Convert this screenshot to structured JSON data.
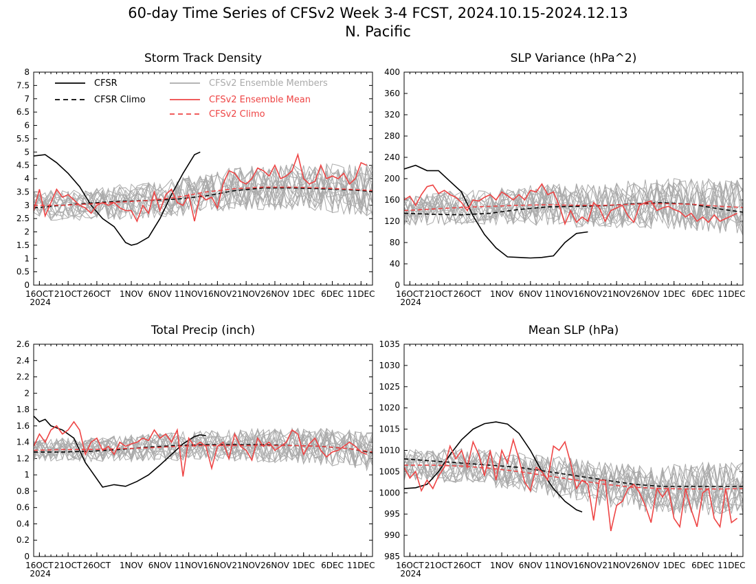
{
  "figure": {
    "title_line1": "60-day Time Series of CFSv2 Week 3-4 FCST, 2024.10.15-2024.12.13",
    "title_line2": "N. Pacific"
  },
  "colors": {
    "cfsr": "#000000",
    "ensemble_members": "#aaaaaa",
    "ensemble_mean": "#ee4444",
    "cfsv2_climo": "#ee4444"
  },
  "legend": [
    {
      "label": "CFSR",
      "color": "#000000",
      "dash": false
    },
    {
      "label": "CFSR Climo",
      "color": "#000000",
      "dash": true
    },
    {
      "label": "CFSv2 Ensemble Members",
      "color": "#aaaaaa",
      "dash": false
    },
    {
      "label": "CFSv2 Ensemble Mean",
      "color": "#ee4444",
      "dash": false
    },
    {
      "label": "CFSv2 Climo",
      "color": "#ee4444",
      "dash": true
    }
  ],
  "x_axis": {
    "tick_labels": [
      "16OCT",
      "21OCT",
      "26OCT",
      "1NOV",
      "6NOV",
      "11NOV",
      "16NOV",
      "21NOV",
      "26NOV",
      "1DEC",
      "6DEC",
      "11DEC"
    ],
    "tick_days": [
      1,
      6,
      11,
      17,
      22,
      27,
      32,
      37,
      42,
      47,
      52,
      57
    ],
    "year_label": "2024",
    "xlim": [
      0,
      59
    ]
  },
  "chart_data": [
    {
      "type": "line",
      "title": "Storm Track Density",
      "ylim": [
        0,
        8
      ],
      "yticks": [
        "0",
        "0.5",
        "1",
        "1.5",
        "2",
        "2.5",
        "3",
        "3.5",
        "4",
        "4.5",
        "5",
        "5.5",
        "6",
        "6.5",
        "7",
        "7.5",
        "8"
      ],
      "series": [
        {
          "name": "CFSR",
          "x": [
            0,
            2,
            4,
            6,
            8,
            10,
            12,
            14,
            16,
            17,
            18,
            20,
            22,
            24,
            26,
            28,
            29
          ],
          "values": [
            4.85,
            4.9,
            4.6,
            4.2,
            3.7,
            3.0,
            2.5,
            2.2,
            1.6,
            1.5,
            1.55,
            1.8,
            2.5,
            3.4,
            4.2,
            4.9,
            5.0
          ]
        },
        {
          "name": "CFSR Climo",
          "x": [
            0,
            5,
            10,
            15,
            20,
            25,
            30,
            35,
            40,
            45,
            50,
            55,
            59
          ],
          "values": [
            2.9,
            3.0,
            3.08,
            3.15,
            3.18,
            3.23,
            3.35,
            3.55,
            3.65,
            3.65,
            3.62,
            3.58,
            3.52
          ]
        },
        {
          "name": "CFSv2 Climo",
          "x": [
            0,
            5,
            10,
            15,
            20,
            25,
            30,
            35,
            40,
            45,
            50,
            55,
            59
          ],
          "values": [
            3.0,
            3.0,
            3.05,
            3.12,
            3.18,
            3.3,
            3.5,
            3.62,
            3.68,
            3.68,
            3.65,
            3.6,
            3.55
          ]
        },
        {
          "name": "CFSv2 Ensemble Mean",
          "x_start": 0,
          "values": [
            2.8,
            3.6,
            2.6,
            3.1,
            3.6,
            3.3,
            3.4,
            3.2,
            3.0,
            2.9,
            2.7,
            3.0,
            3.1,
            3.0,
            3.1,
            2.9,
            2.8,
            2.8,
            2.4,
            3.0,
            2.7,
            3.5,
            2.8,
            3.4,
            3.6,
            3.1,
            3.0,
            3.4,
            2.4,
            3.4,
            3.2,
            3.3,
            2.9,
            3.8,
            4.3,
            4.2,
            3.9,
            3.8,
            4.0,
            4.4,
            4.3,
            4.1,
            4.5,
            4.0,
            4.1,
            4.3,
            4.9,
            4.0,
            3.8,
            3.9,
            4.5,
            4.0,
            4.1,
            4.0,
            4.2,
            3.8,
            4.0,
            4.6,
            4.5
          ]
        }
      ],
      "members_spread": {
        "count": 16,
        "base": "CFSv2 Climo",
        "amplitude": 0.9
      }
    },
    {
      "type": "line",
      "title": "SLP Variance (hPa^2)",
      "ylim": [
        0,
        400
      ],
      "yticks": [
        "0",
        "40",
        "80",
        "120",
        "160",
        "200",
        "240",
        "280",
        "320",
        "360",
        "400"
      ],
      "series": [
        {
          "name": "CFSR",
          "x": [
            0,
            2,
            4,
            6,
            8,
            10,
            12,
            14,
            16,
            18,
            20,
            22,
            24,
            26,
            28,
            30,
            32
          ],
          "values": [
            218,
            225,
            215,
            215,
            195,
            175,
            130,
            95,
            70,
            53,
            52,
            51,
            52,
            55,
            80,
            97,
            100
          ]
        },
        {
          "name": "CFSR Climo",
          "x": [
            0,
            5,
            10,
            15,
            20,
            25,
            30,
            35,
            40,
            45,
            50,
            55,
            59
          ],
          "values": [
            135,
            133,
            132,
            135,
            142,
            147,
            148,
            149,
            153,
            155,
            152,
            143,
            137
          ]
        },
        {
          "name": "CFSv2 Climo",
          "x": [
            0,
            5,
            10,
            15,
            20,
            25,
            30,
            35,
            40,
            45,
            50,
            55,
            59
          ],
          "values": [
            140,
            143,
            146,
            148,
            150,
            151,
            150,
            150,
            152,
            153,
            152,
            148,
            146
          ]
        },
        {
          "name": "CFSv2 Ensemble Mean",
          "x_start": 0,
          "values": [
            160,
            167,
            150,
            170,
            185,
            188,
            172,
            178,
            170,
            165,
            155,
            140,
            160,
            158,
            165,
            170,
            160,
            175,
            168,
            160,
            170,
            160,
            178,
            175,
            190,
            170,
            175,
            150,
            115,
            140,
            118,
            128,
            120,
            155,
            145,
            120,
            140,
            145,
            150,
            130,
            118,
            150,
            155,
            158,
            140,
            145,
            148,
            142,
            138,
            128,
            135,
            120,
            128,
            118,
            132,
            120,
            125,
            130,
            135
          ]
        }
      ],
      "members_spread": {
        "count": 16,
        "base": "CFSv2 Climo",
        "amplitude": 48
      }
    },
    {
      "type": "line",
      "title": "Total Precip (inch)",
      "ylim": [
        0,
        2.6
      ],
      "yticks": [
        "0",
        "0.2",
        "0.4",
        "0.6",
        "0.8",
        "1",
        "1.2",
        "1.4",
        "1.6",
        "1.8",
        "2",
        "2.2",
        "2.4",
        "2.6"
      ],
      "series": [
        {
          "name": "CFSR",
          "x": [
            0,
            1,
            2,
            3,
            5,
            7,
            9,
            10,
            12,
            14,
            16,
            18,
            20,
            22,
            24,
            26,
            28,
            29,
            30
          ],
          "values": [
            1.72,
            1.65,
            1.68,
            1.6,
            1.55,
            1.45,
            1.15,
            1.05,
            0.85,
            0.88,
            0.86,
            0.92,
            1.0,
            1.12,
            1.25,
            1.38,
            1.47,
            1.49,
            1.48
          ]
        },
        {
          "name": "CFSR Climo",
          "x": [
            0,
            5,
            10,
            15,
            20,
            25,
            30,
            35,
            40,
            45,
            50,
            55,
            59
          ],
          "values": [
            1.28,
            1.28,
            1.29,
            1.31,
            1.34,
            1.36,
            1.37,
            1.37,
            1.37,
            1.36,
            1.35,
            1.32,
            1.27
          ]
        },
        {
          "name": "CFSv2 Climo",
          "x": [
            0,
            5,
            10,
            15,
            20,
            25,
            30,
            35,
            40,
            45,
            50,
            55,
            59
          ],
          "values": [
            1.3,
            1.31,
            1.31,
            1.32,
            1.33,
            1.35,
            1.36,
            1.36,
            1.36,
            1.36,
            1.35,
            1.32,
            1.28
          ]
        },
        {
          "name": "CFSv2 Ensemble Mean",
          "x_start": 0,
          "values": [
            1.35,
            1.5,
            1.4,
            1.55,
            1.6,
            1.5,
            1.55,
            1.65,
            1.55,
            1.25,
            1.4,
            1.45,
            1.3,
            1.35,
            1.25,
            1.4,
            1.35,
            1.38,
            1.4,
            1.45,
            1.42,
            1.55,
            1.45,
            1.5,
            1.4,
            1.55,
            0.98,
            1.45,
            1.35,
            1.4,
            1.35,
            1.08,
            1.35,
            1.4,
            1.2,
            1.5,
            1.35,
            1.3,
            1.18,
            1.45,
            1.35,
            1.4,
            1.3,
            1.35,
            1.4,
            1.55,
            1.5,
            1.25,
            1.38,
            1.45,
            1.3,
            1.22,
            1.28,
            1.3,
            1.35,
            1.4,
            1.35,
            1.28,
            1.25
          ]
        }
      ],
      "members_spread": {
        "count": 16,
        "base": "CFSv2 Climo",
        "amplitude": 0.22
      }
    },
    {
      "type": "line",
      "title": "Mean SLP (hPa)",
      "ylim": [
        985,
        1035
      ],
      "yticks": [
        "985",
        "990",
        "995",
        "1000",
        "1005",
        "1010",
        "1015",
        "1020",
        "1025",
        "1030",
        "1035"
      ],
      "series": [
        {
          "name": "CFSR",
          "x": [
            0,
            2,
            4,
            6,
            8,
            10,
            12,
            14,
            16,
            18,
            20,
            22,
            24,
            26,
            28,
            30,
            31
          ],
          "values": [
            1001,
            1001.2,
            1002,
            1005,
            1009,
            1012.5,
            1015,
            1016.3,
            1016.7,
            1016.2,
            1014,
            1010,
            1005,
            1001,
            998,
            996,
            995.5
          ]
        },
        {
          "name": "CFSR Climo",
          "x": [
            0,
            5,
            10,
            15,
            20,
            25,
            30,
            35,
            40,
            45,
            50,
            55,
            59
          ],
          "values": [
            1008,
            1007.5,
            1007,
            1006.5,
            1006,
            1005,
            1004,
            1003,
            1002,
            1001.5,
            1001.5,
            1001.5,
            1001.5
          ]
        },
        {
          "name": "CFSv2 Climo",
          "x": [
            0,
            5,
            10,
            15,
            20,
            25,
            30,
            35,
            40,
            45,
            50,
            55,
            59
          ],
          "values": [
            1006.5,
            1006.5,
            1006.3,
            1005.8,
            1005,
            1004,
            1003,
            1002,
            1001.3,
            1001,
            1000.9,
            1000.9,
            1001
          ]
        },
        {
          "name": "CFSv2 Ensemble Mean",
          "x_start": 0,
          "values": [
            1006,
            1003.5,
            1005,
            1000.5,
            1003,
            1001,
            1004,
            1006,
            1011,
            1008,
            1010,
            1006,
            1012,
            1009,
            1004,
            1010,
            1003,
            1010,
            1007,
            1012.5,
            1008,
            1002.5,
            1000.5,
            1006,
            1005,
            1003,
            1011,
            1010,
            1012,
            1007,
            1001,
            1003,
            1002,
            993.5,
            1003,
            1003,
            991,
            997,
            998,
            1001,
            1002,
            1000,
            997,
            993,
            1001,
            999,
            1001,
            994,
            992,
            1001,
            996,
            992,
            1000,
            1001,
            994,
            992,
            1001,
            993,
            994
          ]
        }
      ],
      "members_spread": {
        "count": 16,
        "base": "CFSv2 Climo",
        "amplitude": 6
      }
    }
  ]
}
